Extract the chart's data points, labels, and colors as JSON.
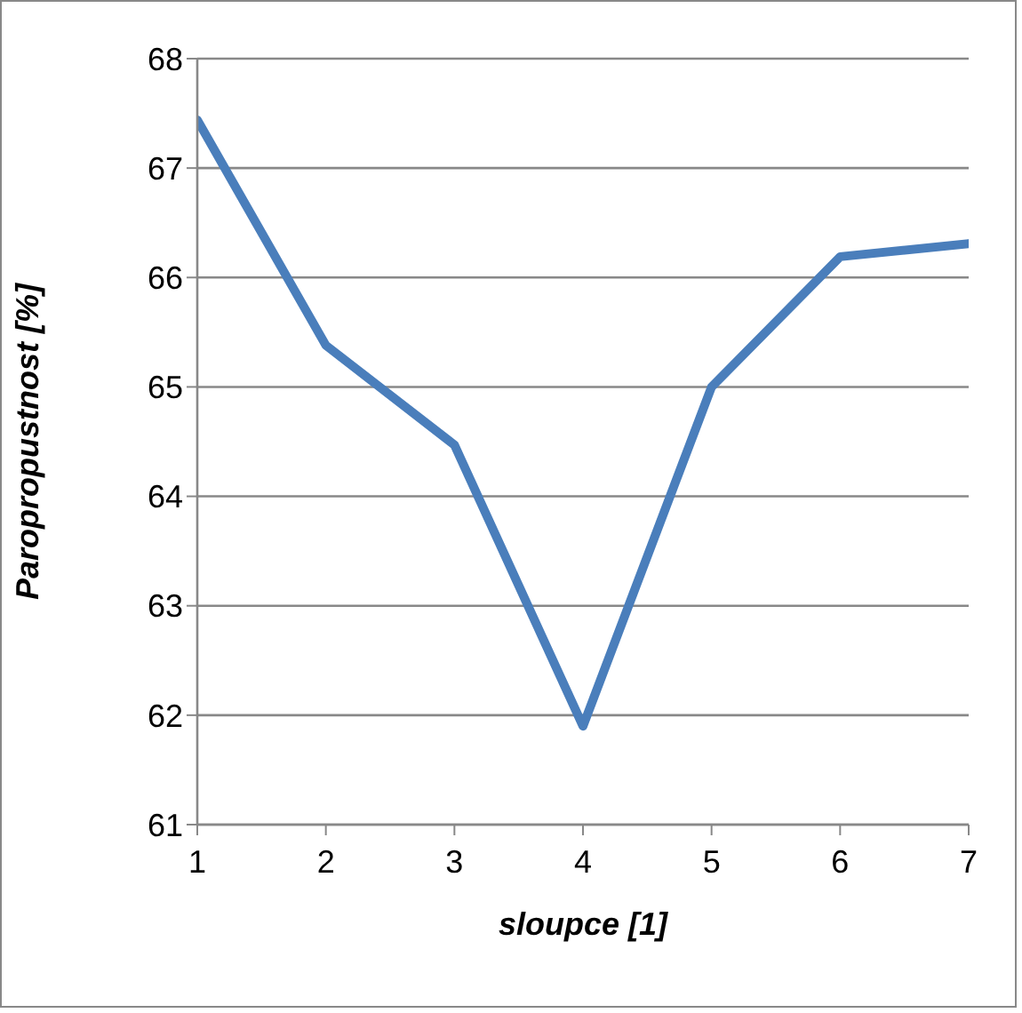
{
  "chart_data": {
    "type": "line",
    "xlabel": "sloupce [1]",
    "ylabel": "Paropropustnost [%]",
    "x": [
      1,
      2,
      3,
      4,
      5,
      6,
      7
    ],
    "series": [
      {
        "color": "#4a7ebb",
        "values": [
          67.44,
          65.38,
          64.47,
          61.9,
          65.0,
          66.19,
          66.31
        ]
      }
    ],
    "xlim": [
      1,
      7
    ],
    "xticks": [
      1,
      2,
      3,
      4,
      5,
      6,
      7
    ],
    "ylim": [
      61,
      68
    ],
    "yticks": [
      61,
      62,
      63,
      64,
      65,
      66,
      67,
      68
    ],
    "grid": "y",
    "legend": false,
    "marker": "none",
    "line_style": "solid"
  }
}
